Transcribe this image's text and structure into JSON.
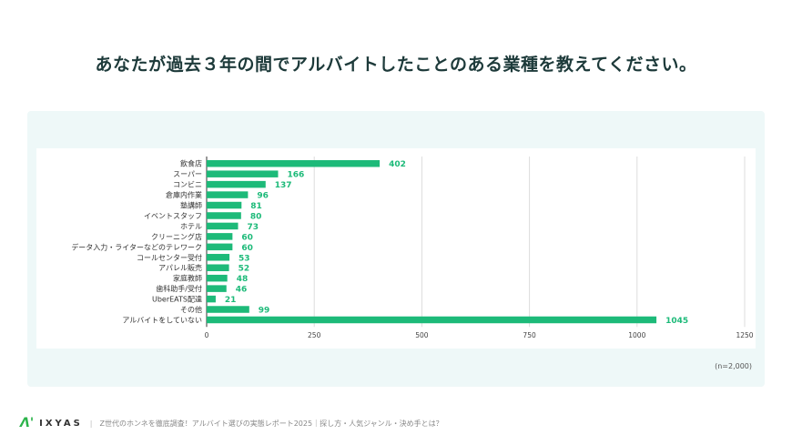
{
  "title": "あなたが過去３年の間でアルバイトしたことのある業種を教えてください。",
  "note": "(n=2,000)",
  "footer": {
    "logo": "IXYAS",
    "text": "Z世代のホンネを徹底調査！アルバイト選びの実態レポート2025｜探し方・人気ジャンル・決め手とは？"
  },
  "colors": {
    "bar": "#1dba79",
    "label": "#1dba79",
    "panel": "#eef8f8"
  },
  "chart_data": {
    "type": "bar",
    "orientation": "horizontal",
    "categories": [
      "飲食店",
      "スーパー",
      "コンビニ",
      "倉庫内作業",
      "塾講師",
      "イベントスタッフ",
      "ホテル",
      "クリーニング店",
      "データ入力・ライターなどのテレワーク",
      "コールセンター受付",
      "アパレル販売",
      "家庭教師",
      "歯科助手/受付",
      "UberEATS配達",
      "その他",
      "アルバイトをしていない"
    ],
    "values": [
      402,
      166,
      137,
      96,
      81,
      80,
      73,
      60,
      60,
      53,
      52,
      48,
      46,
      21,
      99,
      1045
    ],
    "xlim": [
      0,
      1250
    ],
    "xticks": [
      0,
      250,
      500,
      750,
      1000,
      1250
    ],
    "grid": true
  }
}
